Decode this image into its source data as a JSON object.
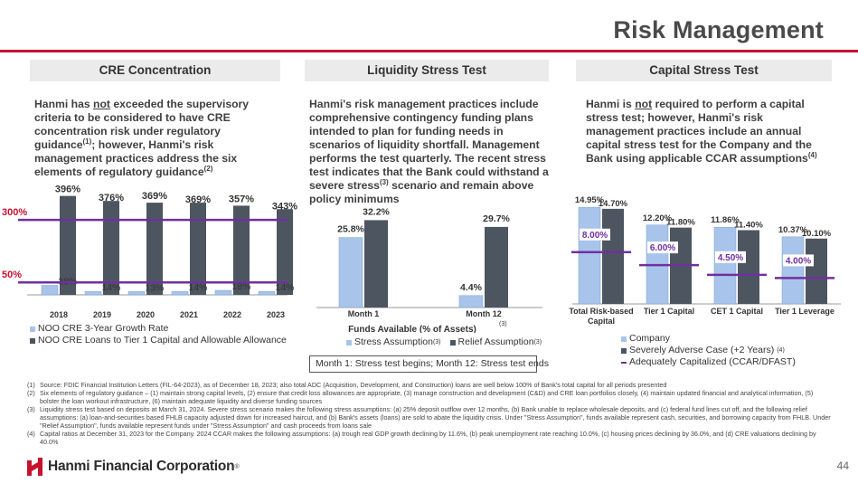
{
  "slide": {
    "title": "Risk Management",
    "page_number": "44",
    "logo_text": "Hanmi Financial Corporation",
    "logo_tm": "®",
    "accent_color": "#c8102e"
  },
  "columns": [
    {
      "header": "CRE Concentration",
      "intro_parts": [
        "Hanmi has ",
        "not",
        " exceeded the supervisory criteria to be considered to have CRE concentration risk under regulatory guidance",
        "(1)",
        "; however, Hanmi's risk management practices address the six elements of regulatory guidance",
        "(2)"
      ]
    },
    {
      "header": "Liquidity Stress Test",
      "intro_parts": [
        "Hanmi's risk management practices include comprehensive contingency funding plans intended to plan for funding needs in scenarios of liquidity shortfall. Management performs the test quarterly. The recent stress test indicates that the Bank could withstand a severe stress",
        "(3)",
        " scenario and remain above policy minimums"
      ]
    },
    {
      "header": "Capital Stress Test",
      "intro_parts": [
        "Hanmi is ",
        "not",
        " required to perform a capital stress test; however, Hanmi's risk management practices include an annual capital stress test for the Company and the Bank using applicable CCAR assumptions",
        "(4)"
      ]
    }
  ],
  "chart_data": [
    {
      "type": "bar",
      "categories": [
        "2018",
        "2019",
        "2020",
        "2021",
        "2022",
        "2023"
      ],
      "series": [
        {
          "name": "NOO CRE 3-Year Growth Rate",
          "values": [
            38,
            14,
            13,
            14,
            18,
            14
          ],
          "labels": [
            "38%",
            "14%",
            "13%",
            "14%",
            "18%",
            "14%"
          ],
          "color": "#a9c4eb"
        },
        {
          "name": "NOO CRE Loans to Tier 1 Capital and Allowable Allowance",
          "values": [
            396,
            376,
            369,
            369,
            357,
            343
          ],
          "labels": [
            "396%",
            "376%",
            "369%",
            "369%",
            "357%",
            "343%"
          ],
          "color": "#4d5560"
        }
      ],
      "reference_lines": [
        {
          "label": "300%",
          "value": 300,
          "color": "#7030a0"
        },
        {
          "label": "50%",
          "value": 50,
          "color": "#7030a0"
        }
      ],
      "ylim": [
        0,
        420
      ],
      "legend": "bottom"
    },
    {
      "type": "bar",
      "categories": [
        "Month 1",
        "Month 12"
      ],
      "xlabel": "Funds Available (% of Assets)",
      "xlabel_sup": "(3)",
      "series": [
        {
          "name": "Stress Assumption",
          "name_sup": "(3)",
          "values": [
            25.8,
            4.4
          ],
          "labels": [
            "25.8%",
            "4.4%"
          ],
          "color": "#a9c4eb"
        },
        {
          "name": "Relief Assumption",
          "name_sup": "(3)",
          "values": [
            32.2,
            29.7
          ],
          "labels": [
            "32.2%",
            "29.7%"
          ],
          "color": "#4d5560"
        }
      ],
      "ylim": [
        0,
        36
      ],
      "legend": "bottom",
      "note": "Month 1: Stress test begins; Month 12: Stress test ends"
    },
    {
      "type": "bar",
      "categories": [
        "Total Risk-based Capital",
        "Tier 1 Capital",
        "CET 1 Capital",
        "Tier 1 Leverage"
      ],
      "series": [
        {
          "name": "Company",
          "values": [
            14.95,
            12.2,
            11.86,
            10.37
          ],
          "labels": [
            "14.95%",
            "12.20%",
            "11.86%",
            "10.37%"
          ],
          "color": "#a9c4eb"
        },
        {
          "name": "Severely Adverse Case (+2 Years)",
          "name_sup": "(4)",
          "values": [
            14.7,
            11.8,
            11.4,
            10.1
          ],
          "labels": [
            "14.70%",
            "11.80%",
            "11.40%",
            "10.10%"
          ],
          "color": "#4d5560"
        },
        {
          "name": "Adequately Capitalized (CCAR/DFAST)",
          "values": [
            8.0,
            6.0,
            4.5,
            4.0
          ],
          "labels": [
            "8.00%",
            "6.00%",
            "4.50%",
            "4.00%"
          ],
          "color": "#7030a0"
        }
      ],
      "ylim": [
        0,
        16.5
      ],
      "legend": "bottom"
    }
  ],
  "footnotes": [
    {
      "num": "(1)",
      "text": "Source: FDIC Financial Institution Letters (FIL-64-2023), as of December 18, 2023; also total ADC (Acquisition, Development, and Construction) loans are well below 100% of Bank's total capital for all periods presented"
    },
    {
      "num": "(2)",
      "text": "Six elements of regulatory guidance – (1) maintain strong capital levels, (2) ensure that credit loss allowances are appropriate, (3) manage construction and development (C&D) and CRE loan portfolios closely, (4) maintain updated financial and analytical information, (5) bolster the loan workout infrastructure, (6) maintain adequate liquidity and diverse funding sources"
    },
    {
      "num": "(3)",
      "text": "Liquidity stress test based on deposits at March 31, 2024. Severe stress scenario makes the following stress assumptions: (a) 25% deposit outflow over 12 months, (b) Bank unable to replace wholesale deposits, and (c) federal fund lines cut off, and the following relief assumptions: (a) loan-and-securities based FHLB capacity adjusted down for increased haircut, and (b) Bank's assets (loans) are sold to abate the liquidity crisis. Under \"Stress Assumption\", funds available represent cash, securities, and borrowing capacity from FHLB. Under \"Relief Assumption\", funds available represent funds under \"Stress Assumption\" and cash proceeds from loans sale"
    },
    {
      "num": "(4)",
      "text": "Capital ratios at December 31, 2023 for the Company. 2024 CCAR makes the following assumptions: (a) trough real GDP growth declining by 11.6%, (b) peak unemployment rate reaching 10.0%, (c) housing prices declining by 36.0%, and (d) CRE valuations declining by 40.0%"
    }
  ]
}
